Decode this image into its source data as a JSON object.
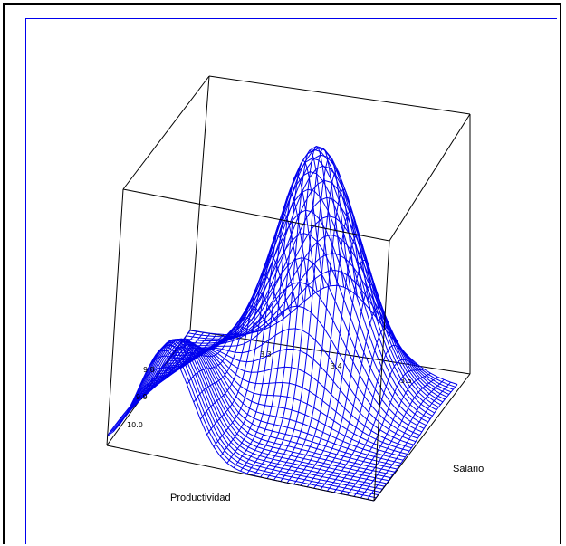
{
  "chart_data": {
    "type": "surface",
    "title": "",
    "x_axis": {
      "label": "Productividad",
      "ticks": [
        "9.8",
        "9.9",
        "10.0"
      ]
    },
    "y_axis": {
      "label": "Salario",
      "ticks": [
        "3.3",
        "3.4",
        "3.5"
      ]
    },
    "grid": false,
    "colors": {
      "mesh": "#0000ee",
      "box": "#000000"
    }
  }
}
